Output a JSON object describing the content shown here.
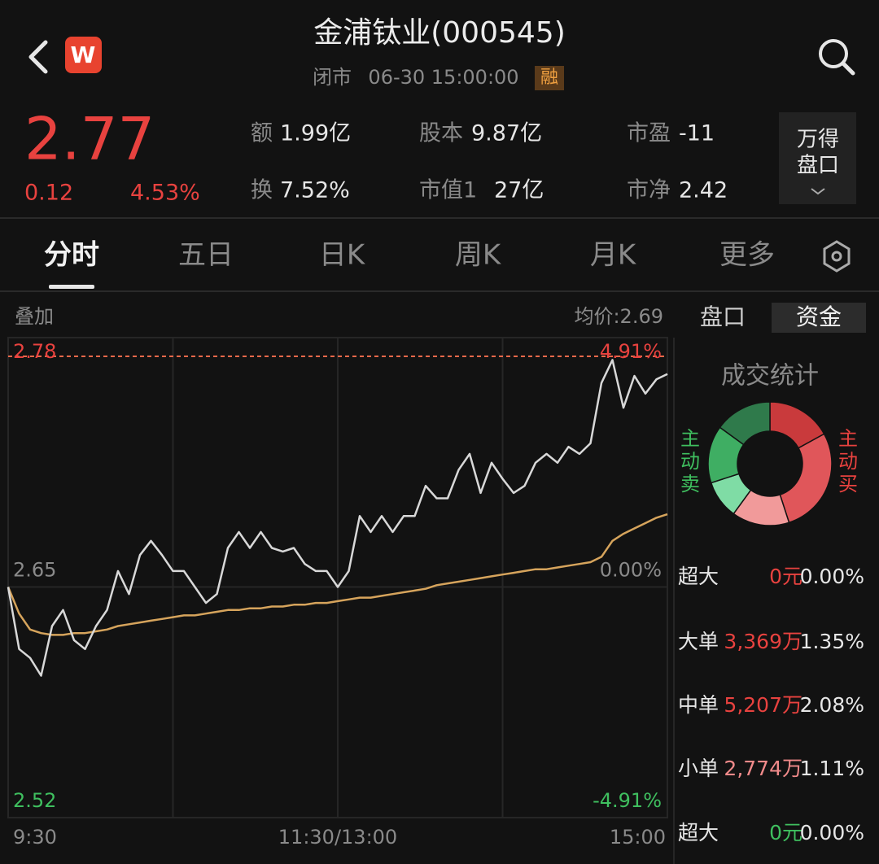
{
  "header": {
    "title": "金浦钛业(000545)",
    "status": "闭市",
    "datetime": "06-30 15:00:00",
    "badge": "融",
    "logo": "W"
  },
  "quote": {
    "price": "2.77",
    "change": "0.12",
    "change_pct": "4.53%",
    "stats": [
      {
        "label": "额",
        "value": "1.99亿"
      },
      {
        "label": "股本",
        "value": "9.87亿"
      },
      {
        "label": "市盈",
        "value": "-11"
      },
      {
        "label": "换",
        "value": "7.52%"
      },
      {
        "label": "市值1",
        "value": "27亿"
      },
      {
        "label": "市净",
        "value": "2.42"
      }
    ],
    "panel_button": [
      "万得",
      "盘口"
    ]
  },
  "tabs": {
    "items": [
      "分时",
      "五日",
      "日K",
      "周K",
      "月K",
      "更多"
    ],
    "active": 0
  },
  "chart_data": {
    "type": "line",
    "overlay_label": "叠加",
    "avg_price_label": "均价:2.69",
    "grid": true,
    "x": [
      0,
      4,
      8,
      12,
      16,
      20,
      24,
      28,
      32,
      36,
      40,
      44,
      48,
      52,
      56,
      60,
      64,
      68,
      72,
      76,
      80,
      84,
      88,
      92,
      96,
      100,
      104,
      108,
      112,
      116,
      120,
      124,
      128,
      132,
      136,
      140,
      144,
      148,
      152,
      156,
      160,
      164,
      168,
      172,
      176,
      180,
      184,
      188,
      192,
      196,
      200,
      204,
      208,
      212,
      216,
      220,
      224,
      228,
      232,
      236,
      240
    ],
    "xlim": [
      0,
      240
    ],
    "xticks": [
      {
        "value": 0,
        "label": "9:30"
      },
      {
        "value": 120,
        "label": "11:30/13:00"
      },
      {
        "value": 240,
        "label": "15:00"
      }
    ],
    "ylim": [
      2.52,
      2.78
    ],
    "yticks": [
      2.52,
      2.65,
      2.78
    ],
    "y2lim": [
      -4.91,
      4.91
    ],
    "y2ticks": [
      {
        "value": -4.91,
        "label": "-4.91%"
      },
      {
        "value": 0,
        "label": "0.00%"
      },
      {
        "value": 4.91,
        "label": "4.91%"
      }
    ],
    "series": [
      {
        "color": "#d8d8d8",
        "values": [
          2.65,
          2.615,
          2.61,
          2.6,
          2.628,
          2.637,
          2.62,
          2.615,
          2.628,
          2.637,
          2.659,
          2.646,
          2.668,
          2.676,
          2.668,
          2.659,
          2.659,
          2.65,
          2.641,
          2.646,
          2.672,
          2.681,
          2.672,
          2.681,
          2.672,
          2.67,
          2.672,
          2.663,
          2.659,
          2.659,
          2.65,
          2.659,
          2.69,
          2.681,
          2.69,
          2.681,
          2.69,
          2.69,
          2.707,
          2.7,
          2.7,
          2.716,
          2.725,
          2.703,
          2.72,
          2.711,
          2.703,
          2.707,
          2.72,
          2.725,
          2.72,
          2.729,
          2.725,
          2.731,
          2.765,
          2.778,
          2.751,
          2.769,
          2.759,
          2.767,
          2.77
        ]
      },
      {
        "color": "#d6a45c",
        "values": [
          2.65,
          2.635,
          2.626,
          2.624,
          2.623,
          2.623,
          2.624,
          2.624,
          2.625,
          2.626,
          2.628,
          2.629,
          2.63,
          2.631,
          2.632,
          2.633,
          2.634,
          2.634,
          2.635,
          2.636,
          2.637,
          2.637,
          2.638,
          2.638,
          2.639,
          2.639,
          2.64,
          2.64,
          2.641,
          2.641,
          2.642,
          2.643,
          2.644,
          2.644,
          2.645,
          2.646,
          2.647,
          2.648,
          2.649,
          2.651,
          2.652,
          2.653,
          2.654,
          2.655,
          2.656,
          2.657,
          2.658,
          2.659,
          2.66,
          2.66,
          2.661,
          2.662,
          2.663,
          2.664,
          2.667,
          2.676,
          2.68,
          2.683,
          2.686,
          2.689,
          2.691
        ]
      }
    ]
  },
  "side": {
    "tabs": [
      "盘口",
      "资金"
    ],
    "active": 1,
    "title": "成交统计",
    "sell_label": "主动卖",
    "buy_label": "主动买",
    "donut": [
      {
        "color": "#c93a3c",
        "value": 17
      },
      {
        "color": "#e0565a",
        "value": 28
      },
      {
        "color": "#f19a9a",
        "value": 15
      },
      {
        "color": "#7fdca5",
        "value": 10
      },
      {
        "color": "#3fae63",
        "value": 15
      },
      {
        "color": "#2f7a4b",
        "value": 15
      }
    ],
    "rows": [
      {
        "label": "超大",
        "amount": "0元",
        "pct": "0.00%",
        "color": "#e8423f"
      },
      {
        "label": "大单",
        "amount": "3,369万",
        "pct": "1.35%",
        "color": "#e8423f"
      },
      {
        "label": "中单",
        "amount": "5,207万",
        "pct": "2.08%",
        "color": "#e8423f"
      },
      {
        "label": "小单",
        "amount": "2,774万",
        "pct": "1.11%",
        "color": "#f08a8a"
      },
      {
        "label": "超大",
        "amount": "0元",
        "pct": "0.00%",
        "color": "#3fbf5f"
      }
    ]
  }
}
